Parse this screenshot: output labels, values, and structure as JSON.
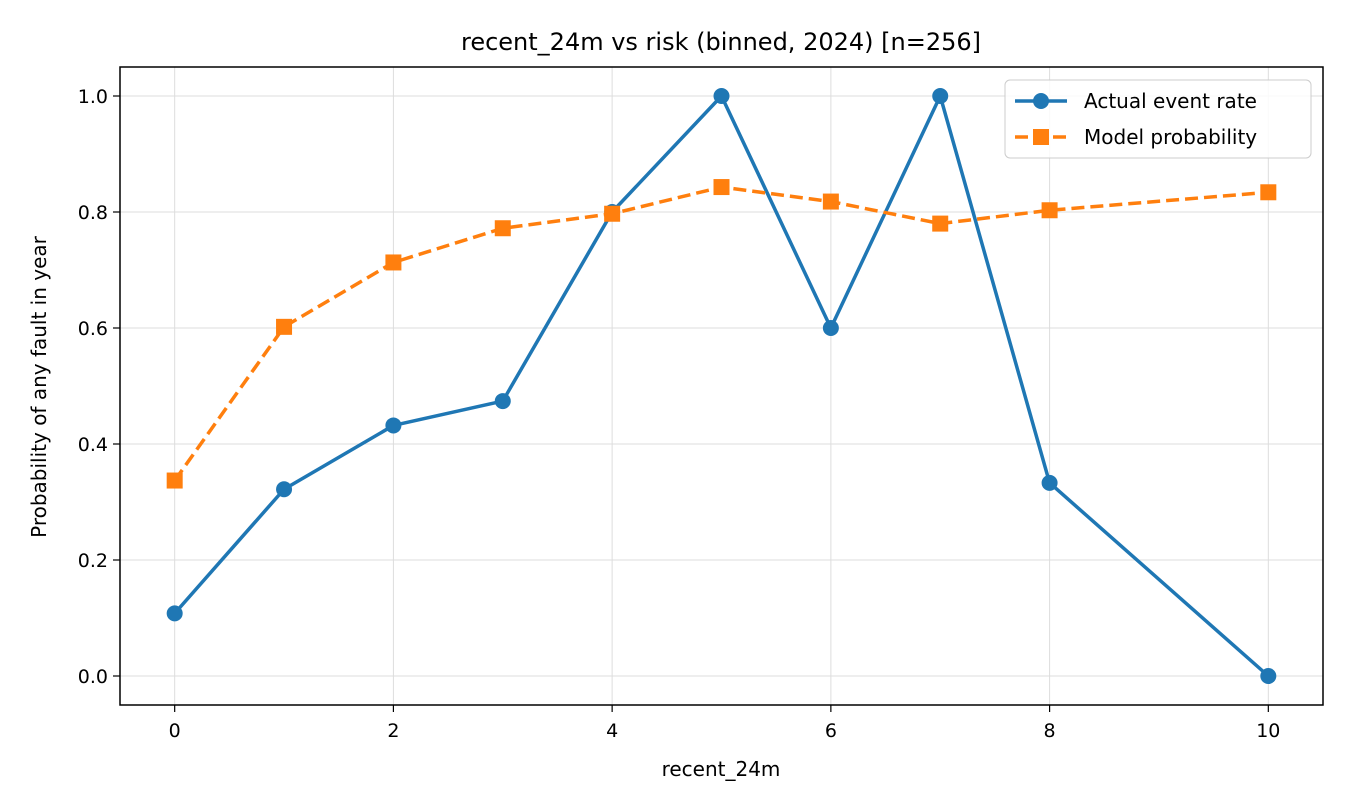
{
  "chart_data": {
    "type": "line",
    "title": "recent_24m vs risk (binned, 2024)  [n=256]",
    "xlabel": "recent_24m",
    "ylabel": "Probability of any fault in year",
    "xlim": [
      -0.5,
      10.5
    ],
    "ylim": [
      -0.05,
      1.05
    ],
    "xticks": [
      "0",
      "2",
      "4",
      "6",
      "8",
      "10"
    ],
    "yticks": [
      "0.0",
      "0.2",
      "0.4",
      "0.6",
      "0.8",
      "1.0"
    ],
    "grid": true,
    "legend_position": "top-right",
    "series": [
      {
        "name": "Actual event rate",
        "color": "#1f77b4",
        "marker": "circle",
        "line_style": "solid",
        "x": [
          0,
          1,
          2,
          3,
          4,
          5,
          6,
          7,
          8,
          10
        ],
        "y": [
          0.108,
          0.322,
          0.432,
          0.474,
          0.8,
          1.0,
          0.6,
          1.0,
          0.333,
          0.0
        ]
      },
      {
        "name": "Model probability",
        "color": "#ff7f0e",
        "marker": "square",
        "line_style": "dashed",
        "x": [
          0,
          1,
          2,
          3,
          4,
          5,
          6,
          7,
          8,
          10
        ],
        "y": [
          0.337,
          0.602,
          0.713,
          0.772,
          0.797,
          0.843,
          0.818,
          0.78,
          0.803,
          0.834
        ]
      }
    ]
  }
}
